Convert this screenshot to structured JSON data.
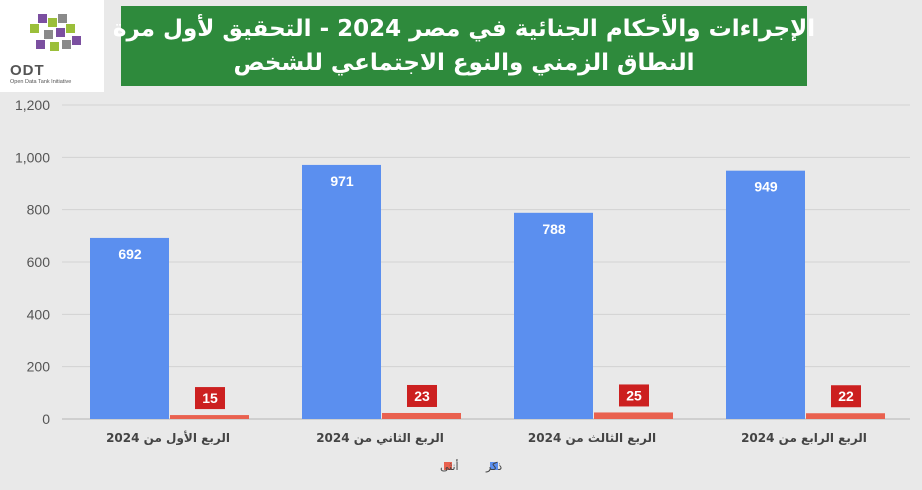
{
  "header": {
    "logo_text": "ODT",
    "logo_subtitle": "Open Data Tank Initiative",
    "title_line1": "الإجراءات والأحكام الجنائية في مصر 2024 - التحقيق لأول مرة",
    "title_line2": "النطاق الزمني والنوع الاجتماعي للشخص"
  },
  "chart_data": {
    "type": "bar",
    "title": "الإجراءات والأحكام الجنائية في مصر 2024 - التحقيق لأول مرة النطاق الزمني والنوع الاجتماعي للشخص",
    "categories": [
      "الربع الأول من 2024",
      "الربع الثاني من 2024",
      "الربع الثالث من 2024",
      "الربع الرابع من 2024"
    ],
    "series": [
      {
        "name": "ذكر",
        "color": "#5b8fef",
        "values": [
          692,
          971,
          788,
          949
        ]
      },
      {
        "name": "أنثى",
        "color": "#e9614f",
        "values": [
          15,
          23,
          25,
          22
        ]
      }
    ],
    "ylim": [
      0,
      1200
    ],
    "yticks": [
      0,
      200,
      400,
      600,
      800,
      1000,
      1200
    ],
    "ytick_labels": [
      "0",
      "200",
      "400",
      "600",
      "800",
      "1,000",
      "1,200"
    ],
    "grid": true,
    "legend_position": "bottom"
  }
}
